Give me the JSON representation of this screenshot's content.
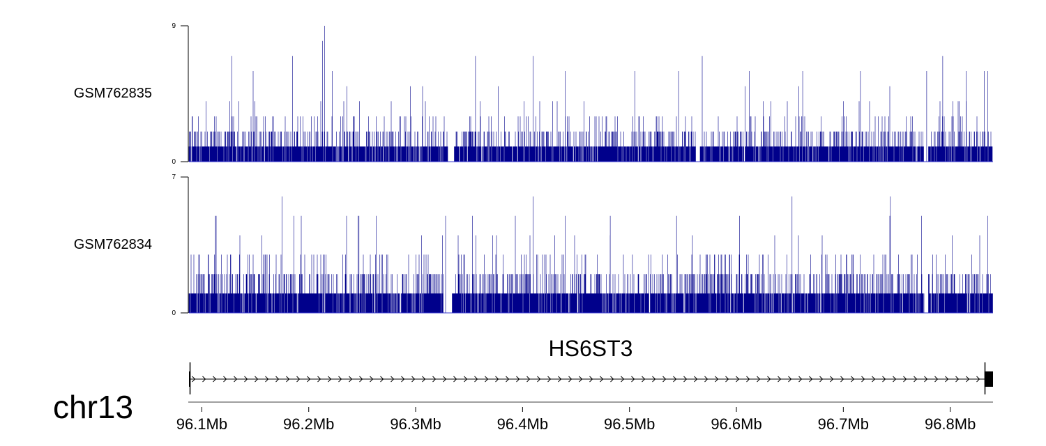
{
  "chart_data": {
    "type": "genome-track",
    "chromosome": "chr13",
    "x_range_mb": [
      96.088,
      96.84
    ],
    "x_ticks": [
      {
        "value": 96.1,
        "label": "96.1Mb"
      },
      {
        "value": 96.2,
        "label": "96.2Mb"
      },
      {
        "value": 96.3,
        "label": "96.3Mb"
      },
      {
        "value": 96.4,
        "label": "96.4Mb"
      },
      {
        "value": 96.5,
        "label": "96.5Mb"
      },
      {
        "value": 96.6,
        "label": "96.6Mb"
      },
      {
        "value": 96.7,
        "label": "96.7Mb"
      },
      {
        "value": 96.8,
        "label": "96.8Mb"
      }
    ],
    "color": "#00008b",
    "series": [
      {
        "name": "GSM762835",
        "ylim": [
          0,
          9
        ],
        "y_max_label": "9",
        "y_min_label": "0",
        "seed": 7,
        "peaks_mb": [
          [
            96.128,
            7
          ],
          [
            96.148,
            6
          ],
          [
            96.185,
            7
          ],
          [
            96.213,
            8
          ],
          [
            96.215,
            9
          ],
          [
            96.222,
            6
          ],
          [
            96.295,
            5
          ],
          [
            96.356,
            7
          ],
          [
            96.41,
            7
          ],
          [
            96.44,
            6
          ],
          [
            96.505,
            6
          ],
          [
            96.546,
            6
          ],
          [
            96.568,
            7
          ],
          [
            96.612,
            6
          ],
          [
            96.662,
            6
          ],
          [
            96.716,
            6
          ],
          [
            96.778,
            6
          ],
          [
            96.793,
            7
          ],
          [
            96.815,
            6
          ],
          [
            96.832,
            6
          ],
          [
            96.835,
            6
          ]
        ],
        "dips_mb": [
          [
            96.33,
            96.336
          ],
          [
            96.562,
            96.566
          ],
          [
            96.7755,
            96.7795
          ]
        ]
      },
      {
        "name": "GSM762834",
        "ylim": [
          0,
          7
        ],
        "y_max_label": "7",
        "y_min_label": "0",
        "seed": 13,
        "peaks_mb": [
          [
            96.175,
            6
          ],
          [
            96.193,
            5
          ],
          [
            96.247,
            5
          ],
          [
            96.263,
            5
          ],
          [
            96.328,
            5
          ],
          [
            96.353,
            5
          ],
          [
            96.41,
            6
          ],
          [
            96.44,
            5
          ],
          [
            96.482,
            5
          ],
          [
            96.544,
            5
          ],
          [
            96.603,
            5
          ],
          [
            96.652,
            6
          ],
          [
            96.744,
            6
          ],
          [
            96.773,
            5
          ],
          [
            96.835,
            5
          ]
        ],
        "dips_mb": [
          [
            96.326,
            96.334
          ],
          [
            96.7755,
            96.7795
          ]
        ]
      }
    ],
    "genes": [
      {
        "name": "HS6ST3",
        "start_mb": 96.089,
        "end_mb": 96.8325,
        "strand": "+",
        "exons_mb": [
          [
            96.088,
            96.0894
          ],
          [
            96.832,
            96.84
          ]
        ]
      }
    ]
  }
}
